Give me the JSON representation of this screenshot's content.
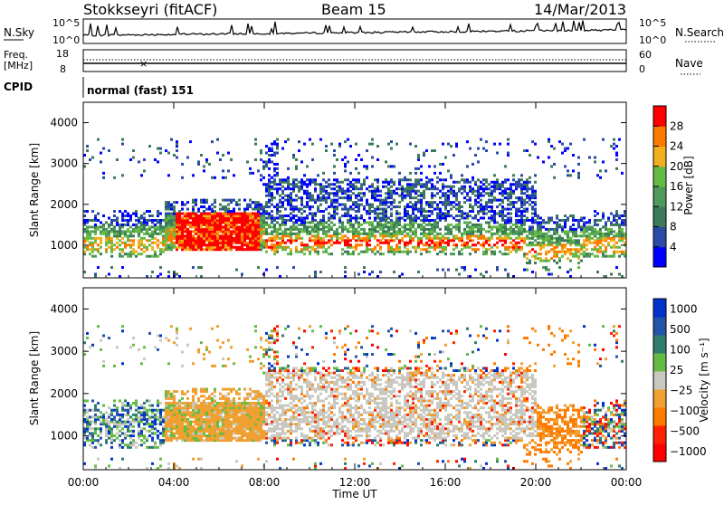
{
  "header": {
    "station": "Stokkseyri (fitACF)",
    "beam": "Beam 15",
    "date": "14/Mar/2013"
  },
  "noise_panel": {
    "left_label": "N.Sky",
    "right_label": "N.Search",
    "left_ticks": [
      "10^5",
      "10^0"
    ],
    "right_ticks": [
      "10^5",
      "10^0"
    ]
  },
  "freq_panel": {
    "left_label_top": "Freq.",
    "left_label_bottom": "[MHz]",
    "right_label": "Nave",
    "left_ticks": [
      "18",
      "8"
    ],
    "right_ticks": [
      "60",
      "0"
    ]
  },
  "cpid": {
    "label": "CPID",
    "value": "normal (fast) 151"
  },
  "chart_data": [
    {
      "type": "heatmap",
      "name": "power",
      "ylabel": "Slant Range [km]",
      "ylim": [
        200,
        4500
      ],
      "yticks": [
        "1000",
        "2000",
        "3000",
        "4000"
      ],
      "colorbar_label": "Power [dB]",
      "colorbar_ticks": [
        "4",
        "8",
        "12",
        "16",
        "20",
        "24",
        "28"
      ],
      "colorbar_range": [
        0,
        32
      ],
      "colors": [
        "#0000ff",
        "#2a4aa8",
        "#3d7a58",
        "#4f9a5a",
        "#66bb44",
        "#f0b020",
        "#ff7a00",
        "#ff0000"
      ]
    },
    {
      "type": "heatmap",
      "name": "velocity",
      "ylabel": "Slant Range [km]",
      "ylim": [
        200,
        4500
      ],
      "yticks": [
        "1000",
        "2000",
        "3000",
        "4000"
      ],
      "colorbar_label": "Velocity [m s⁻¹]",
      "colorbar_ticks": [
        "1000",
        "500",
        "100",
        "25",
        "−25",
        "−100",
        "−500",
        "−1000"
      ],
      "colors": [
        "#0033cc",
        "#2255aa",
        "#2e7d6e",
        "#66bb44",
        "#c8c8c0",
        "#f0a030",
        "#ff7a00",
        "#ff2200",
        "#ff0000"
      ]
    }
  ],
  "xaxis": {
    "label": "Time UT",
    "ticks": [
      "00:00",
      "04:00",
      "08:00",
      "12:00",
      "16:00",
      "20:00",
      "00:00"
    ],
    "range_hours": [
      0,
      24
    ]
  }
}
